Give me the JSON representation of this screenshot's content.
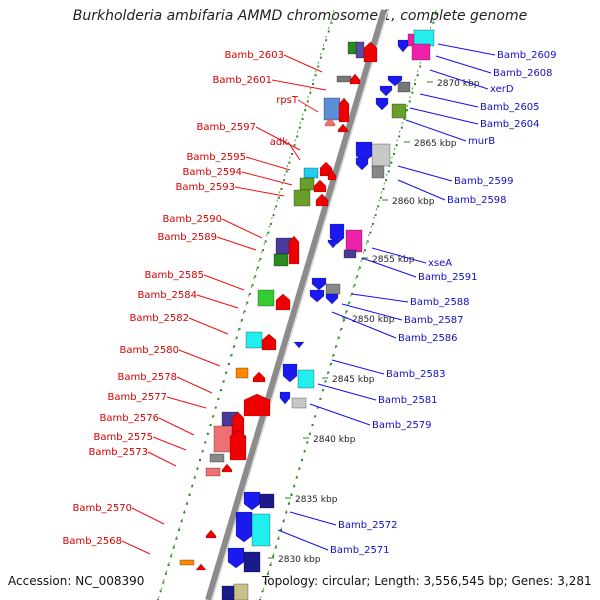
{
  "title": "Burkholderia ambifaria AMMD chromosome 1, complete genome",
  "footer": {
    "accession": "Accession: NC_008390",
    "summary": "Topology: circular; Length: 3,556,545 bp; Genes: 3,281"
  },
  "colors": {
    "backbone": "#8c8c8c",
    "strand_dots": "#2a8a1e",
    "minus_label": "#d40000",
    "plus_label": "#1010c8"
  },
  "scale_labels": [
    "2870 kbp",
    "2865 kbp",
    "2860 kbp",
    "2855 kbp",
    "2850 kbp",
    "2845 kbp",
    "2840 kbp",
    "2835 kbp",
    "2830 kbp"
  ],
  "genes_left": [
    {
      "label": "Bamb_2603"
    },
    {
      "label": "Bamb_2601"
    },
    {
      "label": "rpsT"
    },
    {
      "label": "Bamb_2597"
    },
    {
      "label": "adk"
    },
    {
      "label": "Bamb_2595"
    },
    {
      "label": "Bamb_2594"
    },
    {
      "label": "Bamb_2593"
    },
    {
      "label": "Bamb_2590"
    },
    {
      "label": "Bamb_2589"
    },
    {
      "label": "Bamb_2585"
    },
    {
      "label": "Bamb_2584"
    },
    {
      "label": "Bamb_2582"
    },
    {
      "label": "Bamb_2580"
    },
    {
      "label": "Bamb_2578"
    },
    {
      "label": "Bamb_2577"
    },
    {
      "label": "Bamb_2576"
    },
    {
      "label": "Bamb_2575"
    },
    {
      "label": "Bamb_2573"
    },
    {
      "label": "Bamb_2570"
    },
    {
      "label": "Bamb_2568"
    }
  ],
  "genes_right": [
    {
      "label": "Bamb_2609"
    },
    {
      "label": "Bamb_2608"
    },
    {
      "label": "xerD"
    },
    {
      "label": "Bamb_2605"
    },
    {
      "label": "Bamb_2604"
    },
    {
      "label": "murB"
    },
    {
      "label": "Bamb_2599"
    },
    {
      "label": "Bamb_2598"
    },
    {
      "label": "xseA"
    },
    {
      "label": "Bamb_2591"
    },
    {
      "label": "Bamb_2588"
    },
    {
      "label": "Bamb_2587"
    },
    {
      "label": "Bamb_2586"
    },
    {
      "label": "Bamb_2583"
    },
    {
      "label": "Bamb_2581"
    },
    {
      "label": "Bamb_2579"
    },
    {
      "label": "Bamb_2572"
    },
    {
      "label": "Bamb_2571"
    }
  ]
}
